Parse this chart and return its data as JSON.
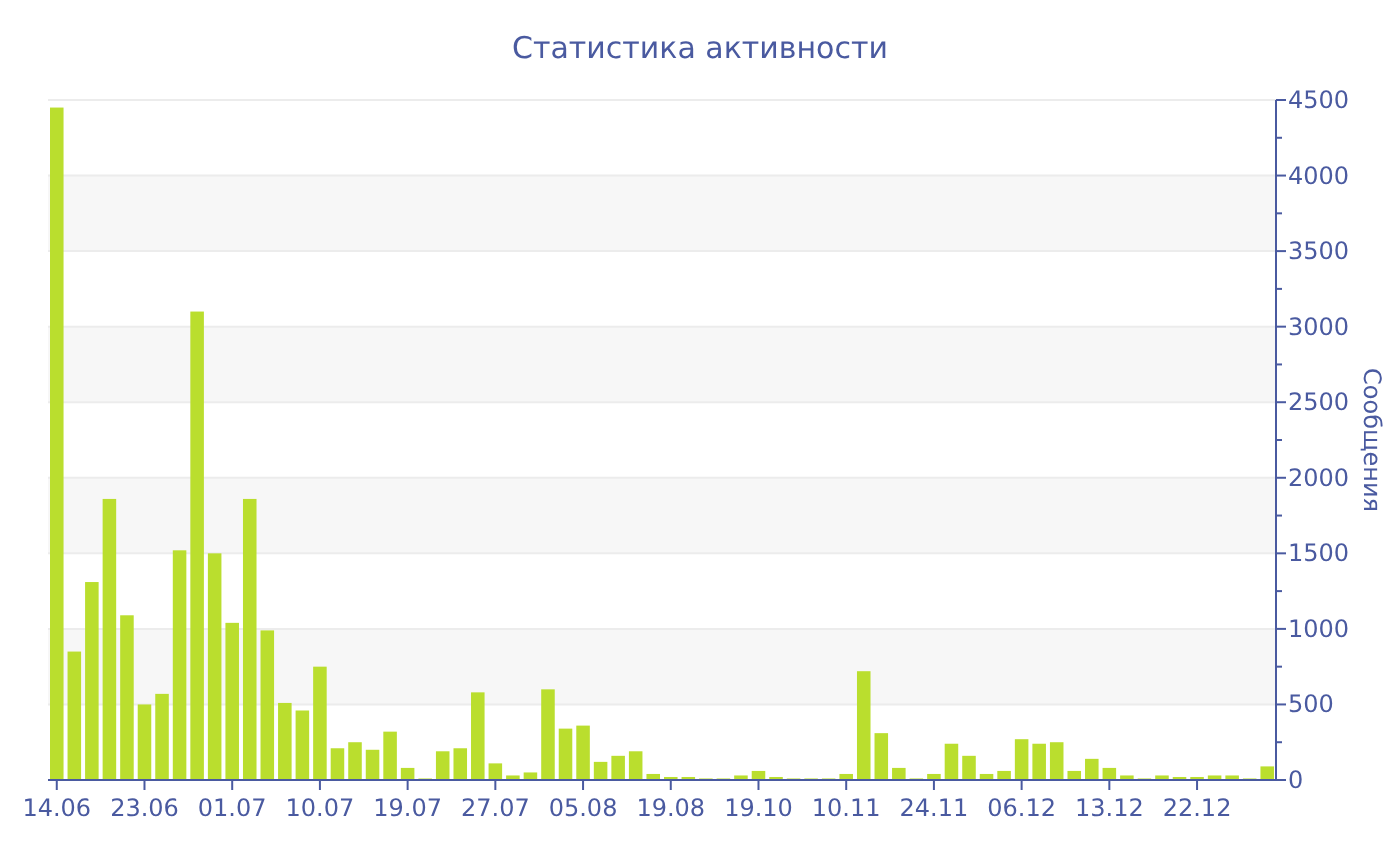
{
  "chart_data": {
    "type": "bar",
    "title": "Статистика активности",
    "y2label": "Сообщения",
    "categories": [
      "14.06",
      null,
      null,
      null,
      null,
      "23.06",
      null,
      null,
      null,
      null,
      "01.07",
      null,
      null,
      null,
      null,
      "10.07",
      null,
      null,
      null,
      null,
      "19.07",
      null,
      null,
      null,
      null,
      "27.07",
      null,
      null,
      null,
      null,
      "05.08",
      null,
      null,
      null,
      null,
      "19.08",
      null,
      null,
      null,
      null,
      "19.10",
      null,
      null,
      null,
      null,
      "10.11",
      null,
      null,
      null,
      null,
      "24.11",
      null,
      null,
      null,
      null,
      "06.12",
      null,
      null,
      null,
      null,
      "13.12",
      null,
      null,
      null,
      null,
      "22.12",
      null,
      null,
      null,
      null
    ],
    "series": [
      {
        "color": "#bade2e",
        "axis": "y2",
        "values": [
          4450,
          850,
          1310,
          1860,
          1090,
          500,
          570,
          1520,
          3100,
          1500,
          1040,
          1860,
          990,
          510,
          460,
          750,
          210,
          250,
          200,
          320,
          80,
          10,
          190,
          210,
          580,
          110,
          30,
          50,
          600,
          340,
          360,
          120,
          160,
          190,
          40,
          20,
          20,
          10,
          10,
          30,
          60,
          20,
          10,
          10,
          10,
          40,
          720,
          310,
          80,
          10,
          40,
          240,
          160,
          40,
          60,
          270,
          240,
          250,
          60,
          140,
          80,
          30,
          10,
          30,
          20,
          20,
          30,
          30,
          10,
          90
        ]
      }
    ],
    "y2lim": [
      0,
      4500
    ],
    "y2ticks": [
      0,
      {
        "value": 250,
        "label": null
      },
      500,
      {
        "value": 750,
        "label": null
      },
      1000,
      {
        "value": 1250,
        "label": null
      },
      1500,
      {
        "value": 1750,
        "label": null
      },
      2000,
      {
        "value": 2250,
        "label": null
      },
      2500,
      {
        "value": 2750,
        "label": null
      },
      3000,
      {
        "value": 3250,
        "label": null
      },
      3500,
      {
        "value": 3750,
        "label": null
      },
      4000,
      {
        "value": 4250,
        "label": null
      },
      4500
    ],
    "grid": "y"
  }
}
